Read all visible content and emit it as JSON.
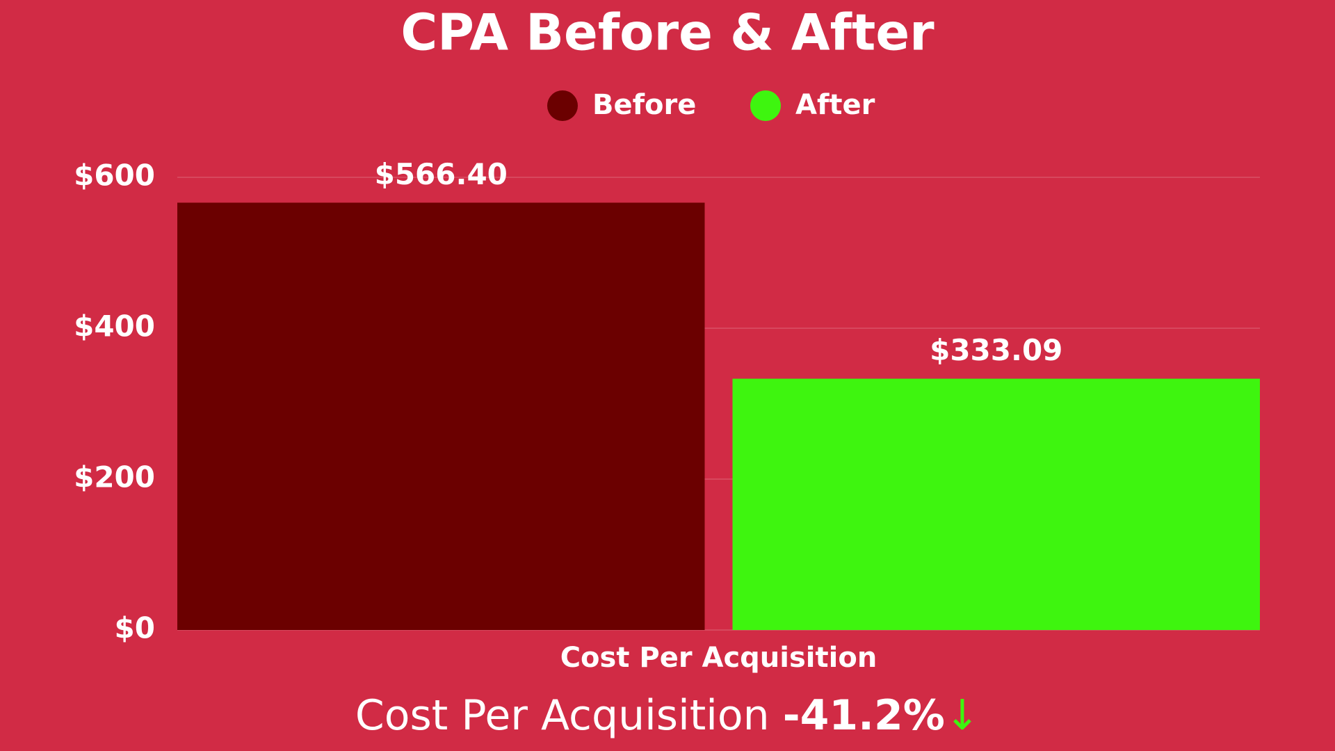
{
  "chart_data": {
    "type": "bar",
    "title": "CPA Before & After",
    "categories": [
      "Cost Per Acquisition"
    ],
    "series": [
      {
        "name": "Before",
        "color": "#6b0000",
        "values": [
          566.4
        ],
        "value_labels": [
          "$566.40"
        ]
      },
      {
        "name": "After",
        "color": "#3ef50f",
        "values": [
          333.09
        ],
        "value_labels": [
          "$333.09"
        ]
      }
    ],
    "ylim": [
      0,
      600
    ],
    "yticks": [
      {
        "value": 0,
        "label": "$0"
      },
      {
        "value": 200,
        "label": "$200"
      },
      {
        "value": 400,
        "label": "$400"
      },
      {
        "value": 600,
        "label": "$600"
      }
    ],
    "grid": true,
    "legend": "top",
    "annotation": {
      "text": "Cost Per Acquisition",
      "change": "-41.2%",
      "arrow": "↓",
      "arrow_color": "#3ef50f"
    }
  }
}
